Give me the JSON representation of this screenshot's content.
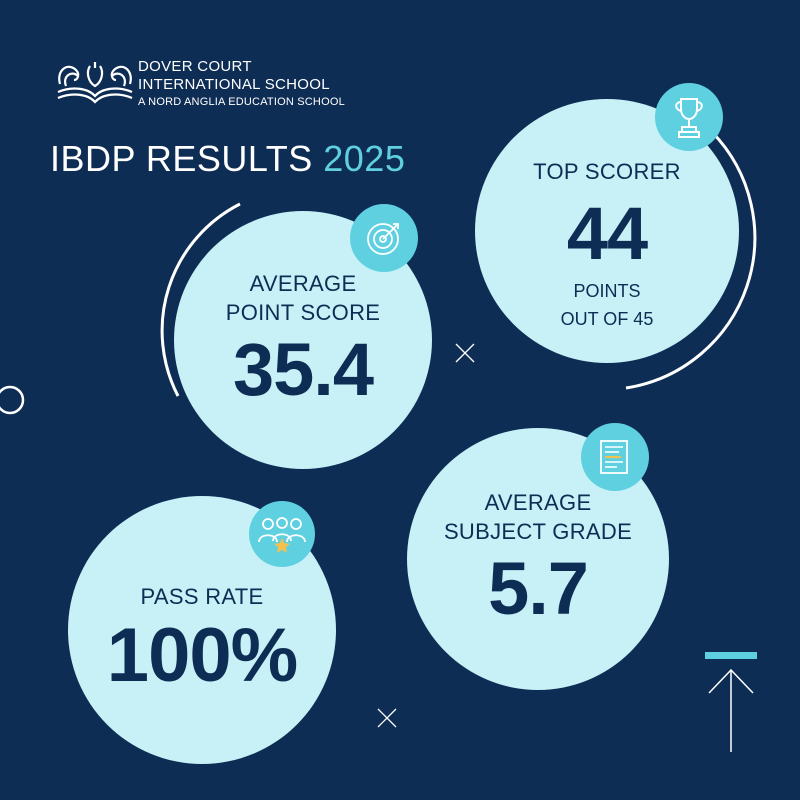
{
  "brand": {
    "logo_icon": "swan-book-crest-icon",
    "line1": "DOVER COURT",
    "line2": "INTERNATIONAL SCHOOL",
    "tagline": "A NORD ANGLIA EDUCATION SCHOOL"
  },
  "headline": {
    "title": "IBDP RESULTS",
    "year": "2025"
  },
  "stats": {
    "top_scorer": {
      "label": "TOP SCORER",
      "value": "44",
      "sub_line1": "POINTS",
      "sub_line2": "OUT OF 45",
      "icon": "trophy-icon"
    },
    "average_point_score": {
      "label_line1": "AVERAGE",
      "label_line2": "POINT SCORE",
      "value": "35.4",
      "icon": "target-icon"
    },
    "average_subject_grade": {
      "label_line1": "AVERAGE",
      "label_line2": "SUBJECT GRADE",
      "value": "5.7",
      "icon": "document-icon"
    },
    "pass_rate": {
      "label": "PASS RATE",
      "value": "100%",
      "icon": "people-star-icon"
    }
  },
  "colors": {
    "background": "#0e2d54",
    "circle_fill": "#c7f0f7",
    "accent": "#5fd0e0",
    "text_dark": "#0e2d54",
    "text_light": "#ffffff"
  }
}
